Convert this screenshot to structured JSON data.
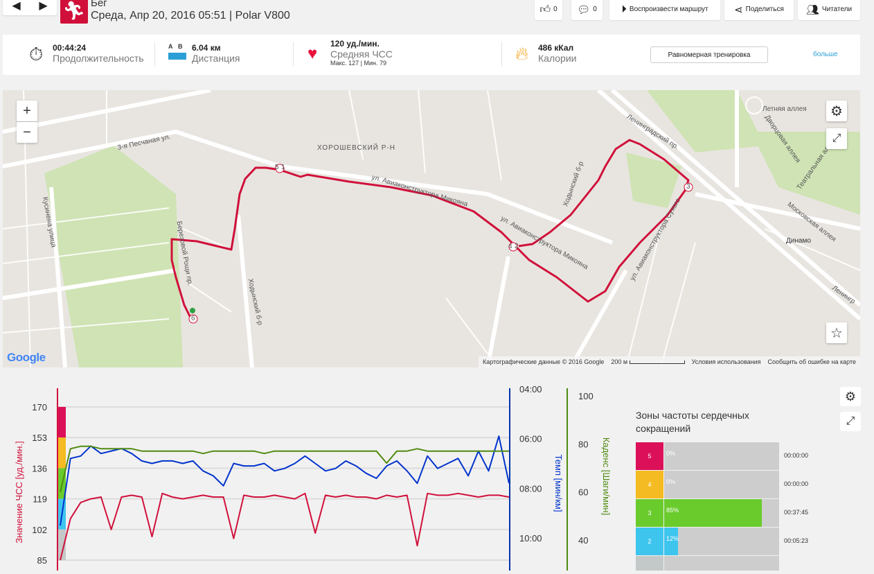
{
  "header": {
    "prev_icon": "◀",
    "next_icon": "▶",
    "sport_icon": "running-icon",
    "title": "Бег",
    "subtitle": "Среда, Апр 20, 2016 05:51 | Polar V800"
  },
  "actions": {
    "likes": "0",
    "comments": "0",
    "play_route": "Воспроизвести маршрут",
    "share": "Поделиться",
    "followers": "Читатели"
  },
  "stats": {
    "duration": {
      "value": "00:44:24",
      "label": "Продолжительность"
    },
    "distance": {
      "a": "A",
      "b": "B",
      "value": "6.04 км",
      "label": "Дистанция"
    },
    "heart_rate": {
      "value": "120 уд./мин.",
      "label": "Средняя ЧСС",
      "max": "Макс. 127",
      "min": "Мин. 79"
    },
    "calories": {
      "value": "486 кКал",
      "label": "Калории"
    },
    "training_type": "Равномерная тренировка",
    "more": "больше"
  },
  "map": {
    "labels": [
      "ХОРОШЕВСКИЙ Р-Н",
      "3-я Песчаная ул.",
      "ул. Авиаконструктора Микояна",
      "ул. Авиаконструктора Микояна",
      "Ленинградский пр.",
      "Летняя аллея",
      "Дворцовая аллея",
      "Театральная аллея",
      "Московская аллея",
      "Динамо",
      "Кусинена улица",
      "Березовой Рощи пр.",
      "Ходынский б-р",
      "Ходынский б-р",
      "ул. Авиаконструктора Сухого",
      "Ленингр"
    ],
    "markers": [
      "5",
      "1",
      "4",
      "2",
      "3",
      "6"
    ],
    "zoom_in": "+",
    "zoom_out": "−",
    "attribution": "Картографические данные © 2016 Google",
    "scale": "200 м",
    "terms": "Условия использования",
    "report": "Сообщить об ошибке на карте",
    "logo": "Google"
  },
  "chart_data": {
    "type": "line",
    "xlabel": "",
    "x_unit": "minutes",
    "x": [
      0,
      1,
      2,
      3,
      4,
      5,
      6,
      7,
      8,
      9,
      10,
      11,
      12,
      13,
      14,
      15,
      16,
      17,
      18,
      19,
      20,
      21,
      22,
      23,
      24,
      25,
      26,
      27,
      28,
      29,
      30,
      31,
      32,
      33,
      34,
      35,
      36,
      37,
      38,
      39,
      40,
      41,
      42,
      43,
      44
    ],
    "axes": {
      "hr": {
        "label": "Значение ЧСС [уд./мин.]",
        "ticks": [
          "170",
          "153",
          "136",
          "119",
          "102",
          "85"
        ],
        "range": [
          85,
          170
        ],
        "color": "#d0103a"
      },
      "pace": {
        "label": "Темп [мин/км]",
        "ticks": [
          "04:00",
          "06:00",
          "08:00",
          "10:00"
        ],
        "range": [
          4,
          10.6
        ],
        "color": "#0033cc"
      },
      "cadence": {
        "label": "Каденс [Шаги/мин]",
        "ticks": [
          "100",
          "80",
          "60",
          "40"
        ],
        "range": [
          30,
          100
        ],
        "color": "#4f8a10"
      }
    },
    "series": [
      {
        "name": "ЧСС",
        "axis": "hr",
        "values": [
          85,
          108,
          117,
          119,
          120,
          102,
          120,
          121,
          120,
          98,
          122,
          120,
          119,
          120,
          121,
          120,
          120,
          97,
          121,
          120,
          120,
          121,
          120,
          119,
          122,
          100,
          121,
          120,
          121,
          120,
          120,
          119,
          121,
          120,
          121,
          93,
          122,
          121,
          121,
          122,
          121,
          120,
          121,
          121,
          120
        ]
      },
      {
        "name": "Темп",
        "axis": "pace",
        "values": [
          9.5,
          6.8,
          6.7,
          6.3,
          6.6,
          6.5,
          6.4,
          6.6,
          6.9,
          7.0,
          6.9,
          6.9,
          7.0,
          6.9,
          7.3,
          7.5,
          7.9,
          7.0,
          7.1,
          7.1,
          7.0,
          7.3,
          7.2,
          7.0,
          6.7,
          7.0,
          7.3,
          7.2,
          6.9,
          7.1,
          7.4,
          7.6,
          7.1,
          6.9,
          7.3,
          7.8,
          6.7,
          7.2,
          7.0,
          6.8,
          7.5,
          6.5,
          7.3,
          5.9,
          7.8
        ]
      },
      {
        "name": "Каденс",
        "axis": "cadence",
        "values": [
          60,
          78,
          79,
          79,
          78,
          78,
          78,
          78,
          77,
          77,
          77,
          77,
          77,
          77,
          76,
          77,
          77,
          77,
          77,
          77,
          76,
          77,
          77,
          77,
          77,
          77,
          77,
          77,
          77,
          77,
          77,
          77,
          72,
          77,
          77,
          78,
          77,
          77,
          77,
          77,
          77,
          77,
          77,
          77,
          77
        ]
      }
    ],
    "zone_bands": [
      {
        "from": 153,
        "to": 170,
        "color": "#dc1058"
      },
      {
        "from": 136,
        "to": 153,
        "color": "#f5bb22"
      },
      {
        "from": 119,
        "to": 136,
        "color": "#6acb2c"
      },
      {
        "from": 102,
        "to": 119,
        "color": "#3ec5ee"
      },
      {
        "from": 85,
        "to": 102,
        "color": "#c3c8c8"
      }
    ],
    "grid": true
  },
  "zones": {
    "title": "Зоны частоты сердечных сокращений",
    "rows": [
      {
        "zone": "5",
        "percent": "0%",
        "fraction": 0,
        "time": "00:00:00",
        "color": "#dc1058"
      },
      {
        "zone": "4",
        "percent": "0%",
        "fraction": 0,
        "time": "00:00:00",
        "color": "#f5bb22"
      },
      {
        "zone": "3",
        "percent": "85%",
        "fraction": 0.85,
        "time": "00:37:45",
        "color": "#6acb2c"
      },
      {
        "zone": "2",
        "percent": "12%",
        "fraction": 0.12,
        "time": "00:05:23",
        "color": "#3ec5ee"
      }
    ]
  }
}
